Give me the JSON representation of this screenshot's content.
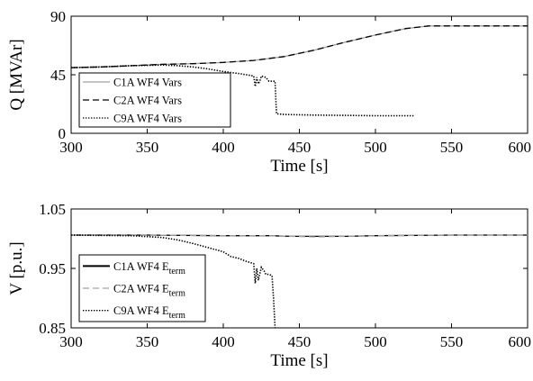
{
  "chart_data": [
    {
      "type": "line",
      "xlabel": "Time [s]",
      "ylabel": "Q [MVAr]",
      "xlim": [
        300,
        600
      ],
      "ylim": [
        0,
        90
      ],
      "xticks": [
        "300",
        "350",
        "400",
        "450",
        "500",
        "550",
        "600"
      ],
      "yticks": [
        "0",
        "45",
        "90"
      ],
      "legend_position": "bottom-left",
      "series": [
        {
          "name": "C1A WF4 Vars",
          "style": "solid",
          "color": "#a0a0a0",
          "x": [
            300,
            320,
            340,
            360,
            380,
            400,
            420,
            440,
            460,
            480,
            500,
            520,
            535,
            560,
            600
          ],
          "y": [
            50.5,
            51.0,
            52.0,
            53.0,
            53.5,
            54.5,
            56.0,
            59.0,
            64.0,
            70.0,
            75.5,
            80.5,
            82.5,
            82.5,
            82.5
          ]
        },
        {
          "name": "C2A WF4 Vars",
          "style": "dashed",
          "color": "#000000",
          "x": [
            300,
            320,
            340,
            360,
            380,
            400,
            420,
            440,
            460,
            480,
            500,
            520,
            535,
            560,
            600
          ],
          "y": [
            50.5,
            51.0,
            52.0,
            53.0,
            53.5,
            54.5,
            56.0,
            59.0,
            64.0,
            70.0,
            75.5,
            80.5,
            82.5,
            82.5,
            82.5
          ]
        },
        {
          "name": "C9A WF4 Vars",
          "style": "dotted",
          "color": "#000000",
          "x": [
            300,
            320,
            340,
            360,
            370,
            380,
            390,
            400,
            410,
            415,
            420,
            421,
            422,
            423,
            424,
            425,
            428,
            430,
            432,
            434,
            435,
            440,
            460,
            480,
            500,
            525
          ],
          "y": [
            50.5,
            51.0,
            52.0,
            52.5,
            52.0,
            51.0,
            49.5,
            47.5,
            46.0,
            45.0,
            44.0,
            36.0,
            43.0,
            38.0,
            40.0,
            44.0,
            43.0,
            40.0,
            40.0,
            40.0,
            15.0,
            14.5,
            14.0,
            13.8,
            13.5,
            13.5
          ]
        }
      ]
    },
    {
      "type": "line",
      "xlabel": "Time [s]",
      "ylabel": "V [p.u.]",
      "xlim": [
        300,
        600
      ],
      "ylim": [
        0.85,
        1.05
      ],
      "xticks": [
        "300",
        "350",
        "400",
        "450",
        "500",
        "550",
        "600"
      ],
      "yticks": [
        "0.85",
        "0.95",
        "1.05"
      ],
      "legend_position": "bottom-left",
      "series": [
        {
          "name": "C1A WF4 E",
          "name_subscript": "term",
          "style": "solid",
          "color": "#000000",
          "x": [
            300,
            350,
            400,
            430,
            445,
            460,
            480,
            500,
            550,
            600
          ],
          "y": [
            1.006,
            1.006,
            1.005,
            1.005,
            1.004,
            1.004,
            1.004,
            1.005,
            1.006,
            1.006
          ]
        },
        {
          "name": "C2A WF4 E",
          "name_subscript": "term",
          "style": "dashed",
          "color": "#a0a0a0",
          "x": [
            300,
            350,
            400,
            430,
            445,
            460,
            480,
            500,
            550,
            600
          ],
          "y": [
            1.006,
            1.006,
            1.005,
            1.005,
            1.004,
            1.003,
            1.004,
            1.005,
            1.006,
            1.006
          ]
        },
        {
          "name": "C9A WF4 E",
          "name_subscript": "term",
          "style": "dotted",
          "color": "#000000",
          "x": [
            300,
            340,
            360,
            370,
            380,
            390,
            400,
            405,
            410,
            415,
            420,
            421,
            422,
            423,
            425,
            427,
            428,
            430,
            432,
            433,
            434
          ],
          "y": [
            1.006,
            1.005,
            1.002,
            0.998,
            0.992,
            0.985,
            0.978,
            0.97,
            0.967,
            0.962,
            0.958,
            0.925,
            0.95,
            0.93,
            0.952,
            0.945,
            0.94,
            0.94,
            0.938,
            0.9,
            0.85
          ]
        }
      ]
    }
  ]
}
